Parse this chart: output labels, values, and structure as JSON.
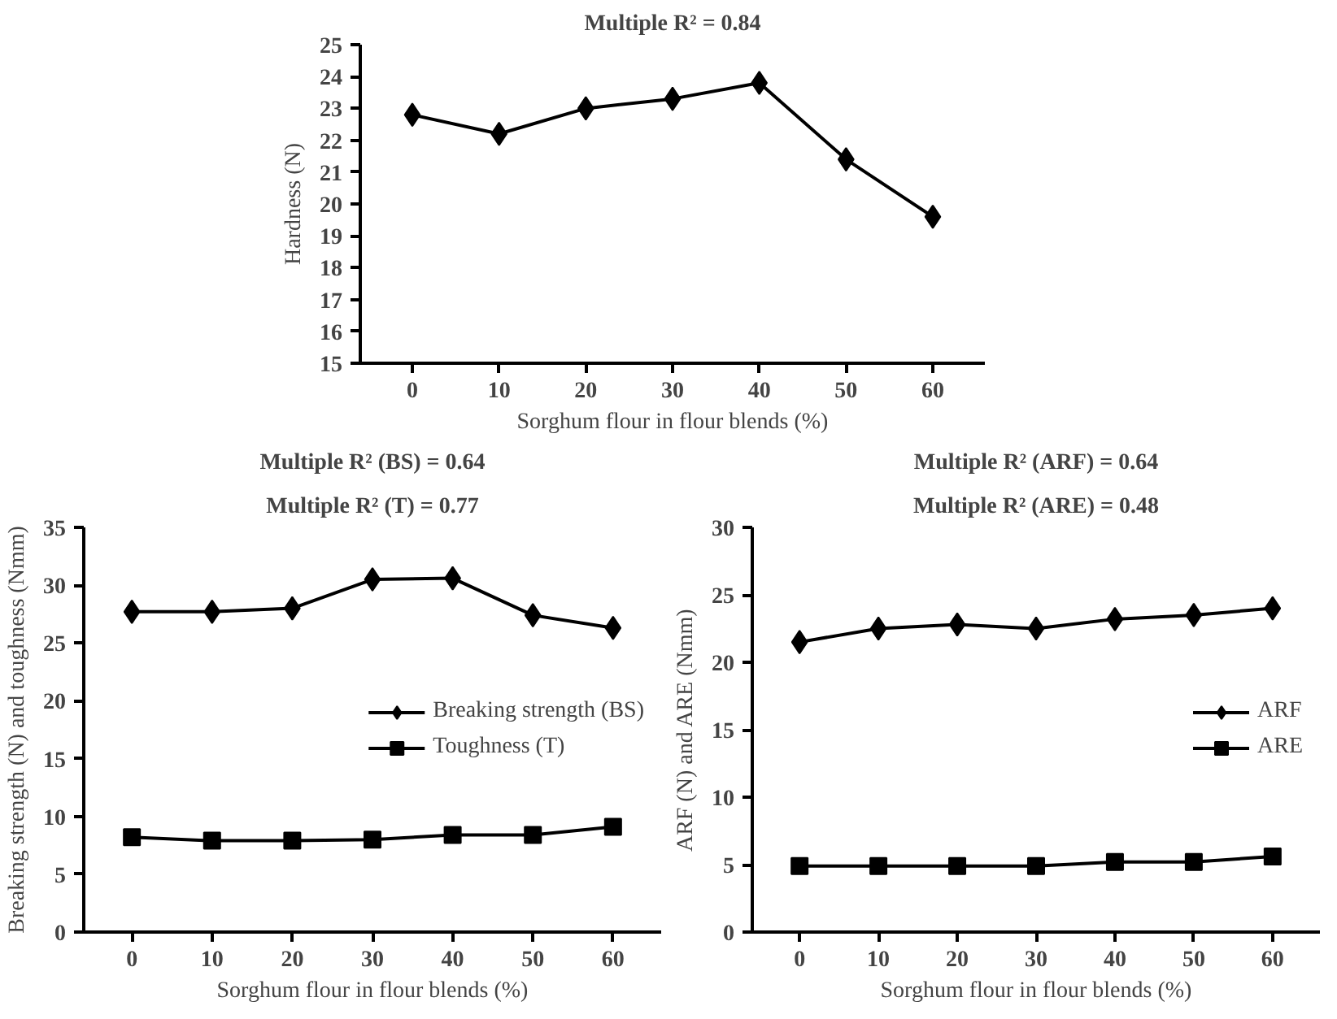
{
  "chart_data": [
    {
      "type": "line",
      "ylabel": "Hardness (N)",
      "xlabel": "Sorghum flour in flour blends (%)",
      "annotations": [
        "Multiple R² = 0.84"
      ],
      "categories": [
        "0",
        "10",
        "20",
        "30",
        "40",
        "50",
        "60"
      ],
      "ylim": [
        15,
        25
      ],
      "yticks": [
        15,
        16,
        17,
        18,
        19,
        20,
        21,
        22,
        23,
        24,
        25
      ],
      "grid": false,
      "legend": false,
      "marker": "diamond",
      "series": [
        {
          "color": "#000000",
          "values": [
            22.8,
            22.2,
            23.0,
            23.3,
            23.8,
            21.4,
            19.6
          ]
        }
      ]
    },
    {
      "type": "line",
      "ylabel": "Breaking strength (N) and toughness (Nmm)",
      "xlabel": "Sorghum flour in flour blends (%)",
      "annotations": [
        "Multiple R² (BS) = 0.64",
        "Multiple R² (T) = 0.77"
      ],
      "categories": [
        "0",
        "10",
        "20",
        "30",
        "40",
        "50",
        "60"
      ],
      "ylim": [
        0,
        35
      ],
      "yticks": [
        0,
        5,
        10,
        15,
        20,
        25,
        30,
        35
      ],
      "grid": false,
      "legend": "right",
      "series": [
        {
          "name": "Breaking strength (BS)",
          "color": "#000000",
          "marker": "diamond",
          "values": [
            27.7,
            27.7,
            28.0,
            30.5,
            30.6,
            27.4,
            26.3
          ]
        },
        {
          "name": "Toughness (T)",
          "color": "#000000",
          "marker": "square",
          "values": [
            8.2,
            7.9,
            7.9,
            8.0,
            8.4,
            8.4,
            9.1
          ]
        }
      ]
    },
    {
      "type": "line",
      "ylabel": "ARF (N) and ARE (Nmm)",
      "xlabel": "Sorghum flour in flour blends (%)",
      "annotations": [
        "Multiple R² (ARF) = 0.64",
        "Multiple R² (ARE) = 0.48"
      ],
      "categories": [
        "0",
        "10",
        "20",
        "30",
        "40",
        "50",
        "60"
      ],
      "ylim": [
        0,
        30
      ],
      "yticks": [
        0,
        5,
        10,
        15,
        20,
        25,
        30
      ],
      "grid": false,
      "legend": "right",
      "series": [
        {
          "name": "ARF",
          "color": "#000000",
          "marker": "diamond",
          "values": [
            21.5,
            22.5,
            22.8,
            22.5,
            23.2,
            23.5,
            24.0
          ]
        },
        {
          "name": "ARE",
          "color": "#000000",
          "marker": "square",
          "values": [
            4.9,
            4.9,
            4.9,
            4.9,
            5.2,
            5.2,
            5.6
          ]
        }
      ]
    }
  ]
}
